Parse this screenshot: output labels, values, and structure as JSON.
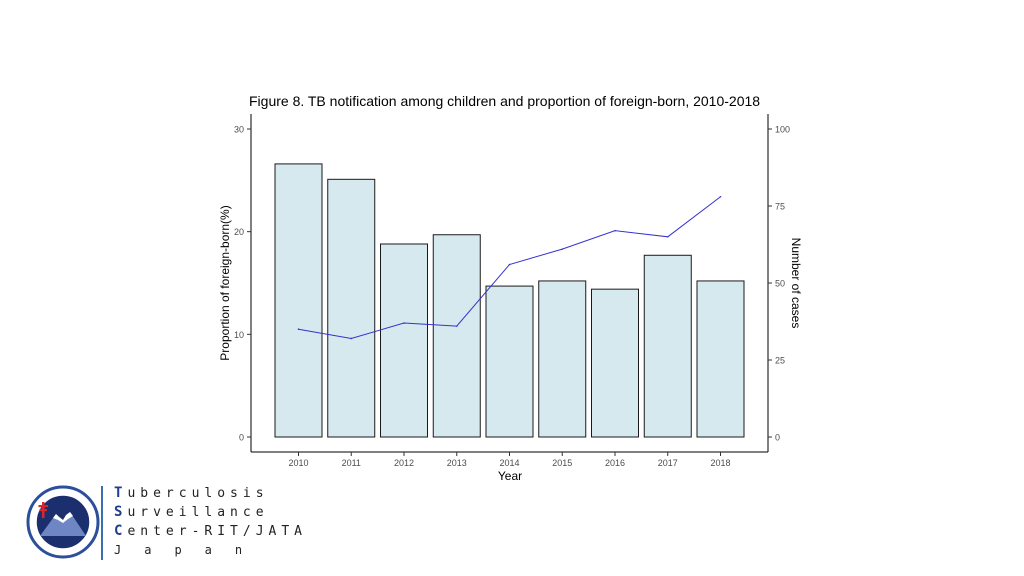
{
  "chart_data": {
    "type": "bar",
    "title": "Figure 8. TB notification among children and proportion of foreign-born, 2010-2018",
    "xlabel": "Year",
    "ylabel_left": "Proportion of foreign-born(%)",
    "ylabel_right": "Number of cases",
    "categories": [
      "2010",
      "2011",
      "2012",
      "2013",
      "2014",
      "2015",
      "2016",
      "2017",
      "2018"
    ],
    "left_axis": {
      "range": [
        0,
        30
      ],
      "ticks": [
        "0",
        "10",
        "20",
        "30"
      ]
    },
    "right_axis": {
      "range": [
        0,
        100
      ],
      "ticks": [
        "0",
        "25",
        "50",
        "75",
        "100"
      ]
    },
    "series": [
      {
        "name": "Proportion of foreign-born(%)",
        "type": "bar",
        "axis": "left",
        "values": [
          26.6,
          25.1,
          18.8,
          19.7,
          14.7,
          15.2,
          14.4,
          17.7,
          15.2
        ]
      },
      {
        "name": "Number of cases",
        "type": "line",
        "axis": "right",
        "values": [
          35,
          32,
          37,
          36,
          56,
          61,
          67,
          65,
          78
        ]
      }
    ],
    "bar_fill": "#d6e9ee",
    "line_color": "#3333cc",
    "grid": false
  },
  "logo": {
    "lines": [
      {
        "cap": "T",
        "rest": "uberculosis"
      },
      {
        "cap": "S",
        "rest": "urveillance"
      },
      {
        "cap": "C",
        "rest": "enter-RIT/JATA"
      }
    ],
    "country": "Japan",
    "accent_color": "#1f3f8a"
  }
}
